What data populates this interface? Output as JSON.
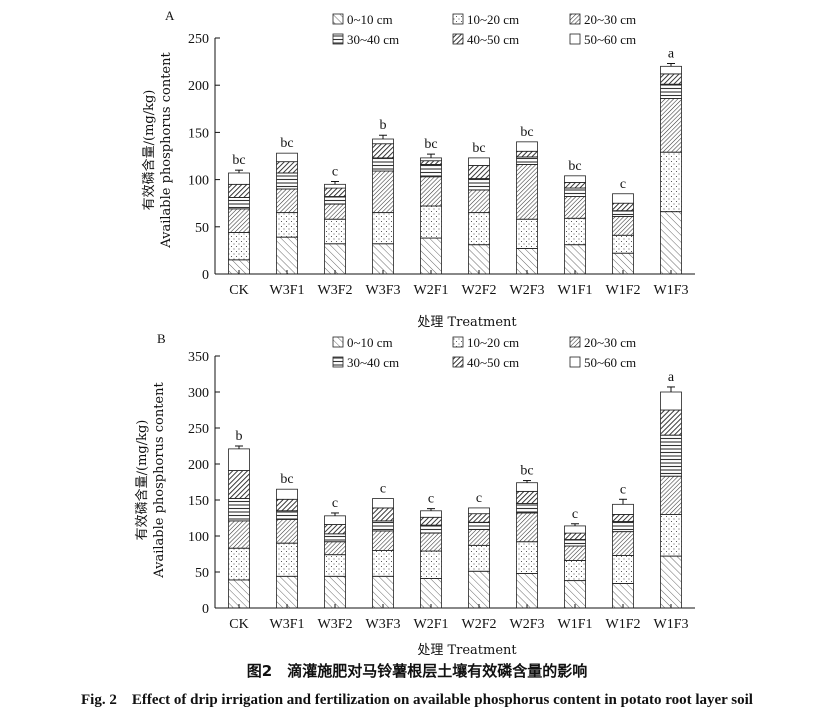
{
  "figure": {
    "caption_cn": "图2　滴灌施肥对马铃薯根层土壤有效磷含量的影响",
    "caption_en": "Fig. 2　Effect of drip irrigation and fertilization on available phosphorus content in potato root layer soil"
  },
  "legend_labels": [
    "0~10 cm",
    "10~20 cm",
    "20~30 cm",
    "30~40 cm",
    "40~50 cm",
    "50~60 cm"
  ],
  "chart_data": [
    {
      "type": "bar",
      "stacked": true,
      "panel": "A",
      "xlabel": "处理 Treatment",
      "ylabel_cn": "有效磷含量/(mg/kg)",
      "ylabel_en": "Available phosphorus content",
      "ylim": [
        0,
        250
      ],
      "yticks": [
        0,
        50,
        100,
        150,
        200,
        250
      ],
      "categories": [
        "CK",
        "W3F1",
        "W3F2",
        "W3F3",
        "W2F1",
        "W2F2",
        "W2F3",
        "W1F1",
        "W1F2",
        "W1F3"
      ],
      "series": [
        {
          "name": "0~10 cm",
          "values": [
            15,
            39,
            32,
            32,
            38,
            31,
            27,
            31,
            22,
            66
          ]
        },
        {
          "name": "10~20 cm",
          "values": [
            29,
            26,
            26,
            33,
            34,
            34,
            31,
            28,
            19,
            63
          ]
        },
        {
          "name": "20~30 cm",
          "values": [
            25,
            25,
            16,
            44,
            31,
            24,
            58,
            23,
            20,
            57
          ]
        },
        {
          "name": "30~40 cm",
          "values": [
            12,
            17,
            8,
            14,
            13,
            12,
            8,
            9,
            6,
            15
          ]
        },
        {
          "name": "40~50 cm",
          "values": [
            14,
            12,
            9,
            15,
            4,
            14,
            6,
            6,
            8,
            11
          ]
        },
        {
          "name": "50~60 cm",
          "values": [
            12,
            9,
            4,
            5,
            3,
            8,
            10,
            7,
            10,
            8
          ]
        }
      ],
      "error": [
        3,
        0,
        3,
        4,
        4,
        0,
        0,
        0,
        0,
        3
      ],
      "significance": [
        "bc",
        "bc",
        "c",
        "b",
        "bc",
        "bc",
        "bc",
        "bc",
        "c",
        "a"
      ]
    },
    {
      "type": "bar",
      "stacked": true,
      "panel": "B",
      "xlabel": "处理 Treatment",
      "ylabel_cn": "有效磷含量/(mg/kg)",
      "ylabel_en": "Available phosphorus content",
      "ylim": [
        0,
        350
      ],
      "yticks": [
        0,
        50,
        100,
        150,
        200,
        250,
        300,
        350
      ],
      "categories": [
        "CK",
        "W3F1",
        "W3F2",
        "W3F3",
        "W2F1",
        "W2F2",
        "W2F3",
        "W1F1",
        "W1F2",
        "W1F3"
      ],
      "series": [
        {
          "name": "0~10 cm",
          "values": [
            39,
            44,
            44,
            44,
            41,
            51,
            48,
            38,
            34,
            72
          ]
        },
        {
          "name": "10~20 cm",
          "values": [
            44,
            46,
            30,
            36,
            38,
            36,
            44,
            28,
            39,
            58
          ]
        },
        {
          "name": "20~30 cm",
          "values": [
            38,
            33,
            18,
            27,
            25,
            22,
            40,
            20,
            33,
            53
          ]
        },
        {
          "name": "30~40 cm",
          "values": [
            31,
            12,
            11,
            14,
            11,
            10,
            13,
            9,
            14,
            57
          ]
        },
        {
          "name": "40~50 cm",
          "values": [
            39,
            16,
            13,
            18,
            11,
            12,
            17,
            9,
            10,
            35
          ]
        },
        {
          "name": "50~60 cm",
          "values": [
            30,
            14,
            12,
            13,
            9,
            8,
            12,
            10,
            14,
            25
          ]
        }
      ],
      "error": [
        4,
        0,
        4,
        0,
        3,
        0,
        3,
        3,
        7,
        7
      ],
      "significance": [
        "b",
        "bc",
        "c",
        "c",
        "c",
        "c",
        "bc",
        "c",
        "c",
        "a"
      ]
    }
  ]
}
